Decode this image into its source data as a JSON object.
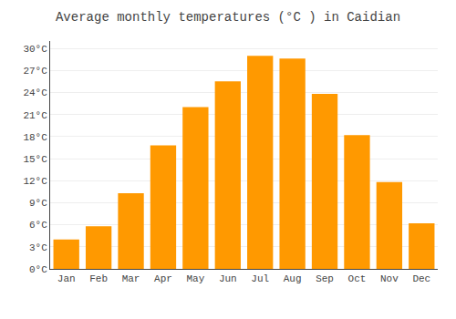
{
  "chart_data": {
    "type": "bar",
    "title": "Average monthly temperatures (°C ) in Caidian",
    "categories": [
      "Jan",
      "Feb",
      "Mar",
      "Apr",
      "May",
      "Jun",
      "Jul",
      "Aug",
      "Sep",
      "Oct",
      "Nov",
      "Dec"
    ],
    "values": [
      4.0,
      5.8,
      10.3,
      16.8,
      22.0,
      25.5,
      29.0,
      28.6,
      23.8,
      18.2,
      11.8,
      6.2
    ],
    "color": "#FF9900",
    "ylim": [
      0,
      31
    ],
    "yticks": [
      {
        "value": 0,
        "label": "0°C"
      },
      {
        "value": 3,
        "label": "3°C"
      },
      {
        "value": 6,
        "label": "6°C"
      },
      {
        "value": 9,
        "label": "9°C"
      },
      {
        "value": 12,
        "label": "12°C"
      },
      {
        "value": 15,
        "label": "15°C"
      },
      {
        "value": 18,
        "label": "18°C"
      },
      {
        "value": 21,
        "label": "21°C"
      },
      {
        "value": 24,
        "label": "24°C"
      },
      {
        "value": 27,
        "label": "27°C"
      },
      {
        "value": 30,
        "label": "30°C"
      }
    ],
    "grid": true
  }
}
